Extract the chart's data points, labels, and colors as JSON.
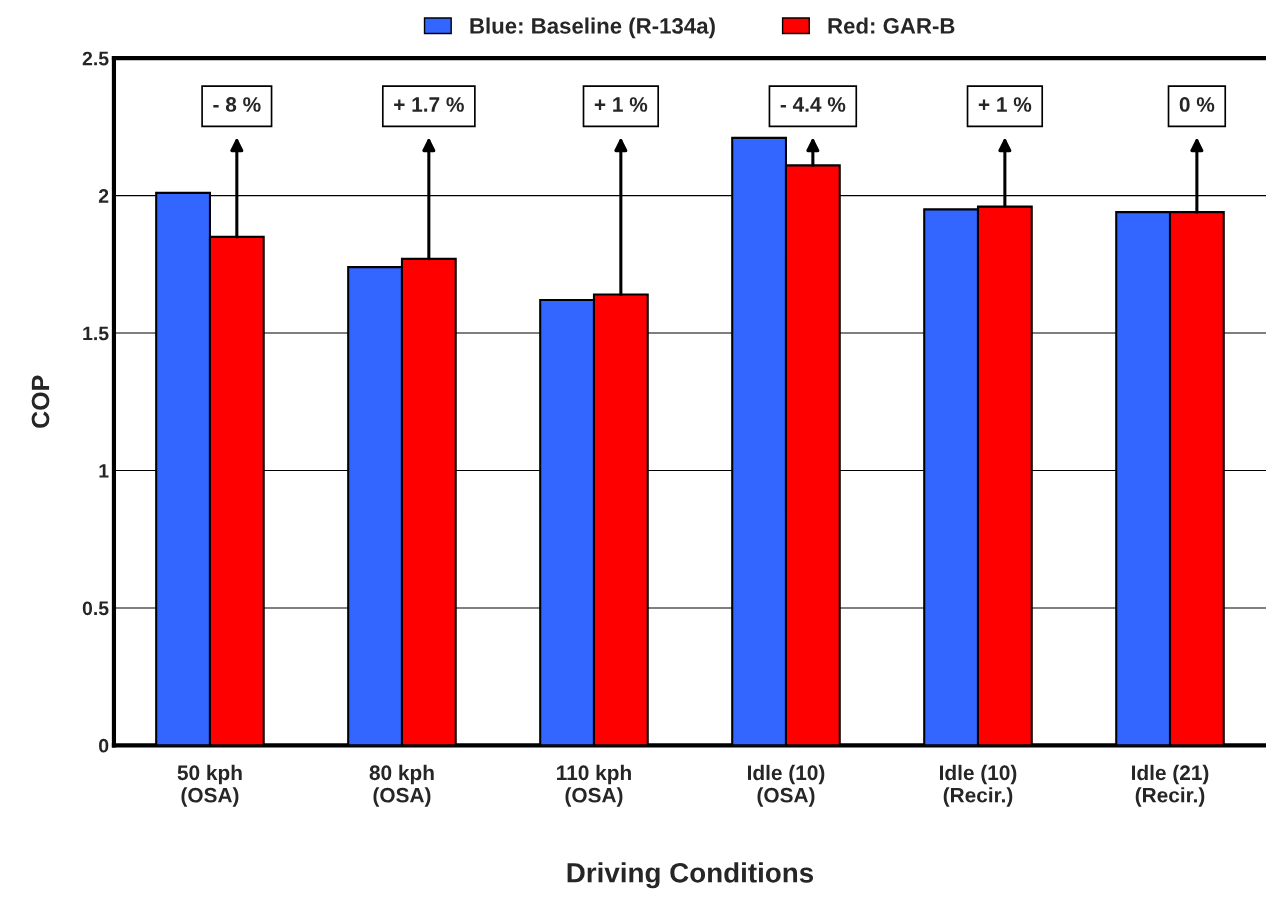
{
  "chart_data": {
    "type": "bar",
    "xlabel": "Driving Conditions",
    "ylabel": "COP",
    "categories": [
      "50 kph\n(OSA)",
      "80 kph\n(OSA)",
      "110 kph\n(OSA)",
      "Idle (10)\n(OSA)",
      "Idle (10)\n(Recir.)",
      "Idle (21)\n(Recir.)"
    ],
    "series": [
      {
        "name": "Blue: Baseline (R-134a)",
        "color": "#3366ff",
        "values": [
          2.01,
          1.74,
          1.62,
          2.21,
          1.95,
          1.94
        ]
      },
      {
        "name": "Red: GAR-B",
        "color": "#ff0000",
        "values": [
          1.85,
          1.77,
          1.64,
          2.11,
          1.96,
          1.94
        ]
      }
    ],
    "ylim": [
      0,
      2.5
    ],
    "yticks": [
      0,
      0.5,
      1,
      1.5,
      2,
      2.5
    ],
    "grid": "y",
    "legend": "top",
    "annotations": [
      "- 8 %",
      "+ 1.7 %",
      "+ 1 %",
      "- 4.4 %",
      "+ 1 %",
      "0 %"
    ]
  }
}
